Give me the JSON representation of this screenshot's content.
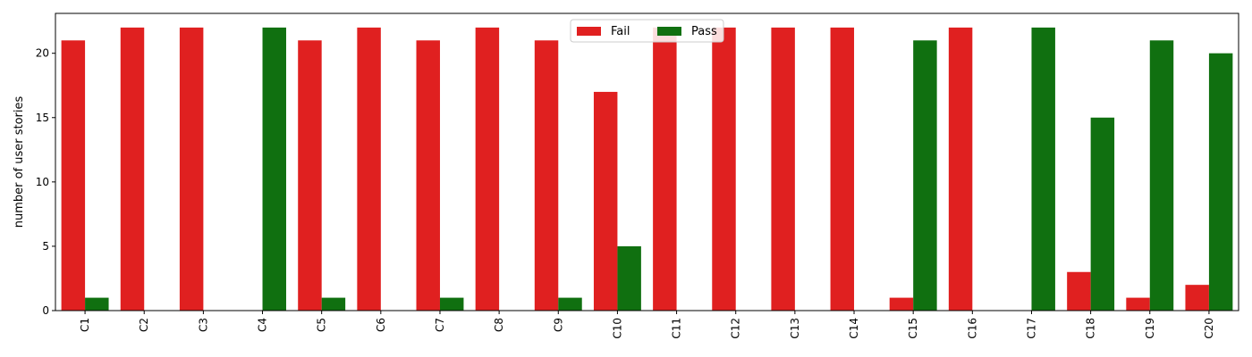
{
  "chart_data": {
    "type": "bar",
    "title": "",
    "xlabel": "",
    "ylabel": "number of user stories",
    "categories": [
      "C1",
      "C2",
      "C3",
      "C4",
      "C5",
      "C6",
      "C7",
      "C8",
      "C9",
      "C10",
      "C11",
      "C12",
      "C13",
      "C14",
      "C15",
      "C16",
      "C17",
      "C18",
      "C19",
      "C20"
    ],
    "series": [
      {
        "name": "Fail",
        "color": "#e02020",
        "values": [
          21,
          22,
          22,
          0,
          21,
          22,
          21,
          22,
          21,
          17,
          22,
          22,
          22,
          22,
          1,
          22,
          0,
          3,
          1,
          2
        ]
      },
      {
        "name": "Pass",
        "color": "#107010",
        "values": [
          1,
          0,
          0,
          22,
          1,
          0,
          1,
          0,
          1,
          5,
          0,
          0,
          0,
          0,
          21,
          0,
          22,
          15,
          21,
          20
        ]
      }
    ],
    "ylim": [
      0,
      23.1
    ],
    "yticks": [
      0,
      5,
      10,
      15,
      20
    ],
    "grid": false,
    "legend_position": "top-center"
  }
}
